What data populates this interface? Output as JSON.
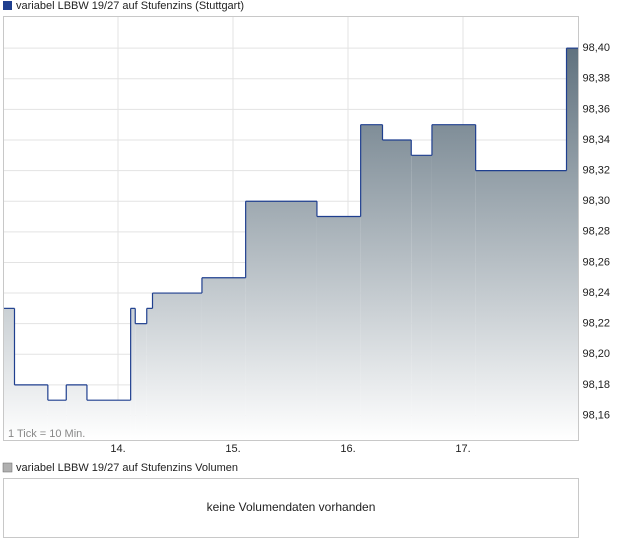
{
  "chart_data": {
    "type": "step-area",
    "title": "variabel LBBW 19/27 auf Stufenzins (Stuttgart)",
    "note": "1 Tick = 10 Min.",
    "x": [
      13.0,
      13.1,
      13.39,
      13.55,
      13.73,
      14.11,
      14.15,
      14.25,
      14.3,
      14.73,
      15.11,
      15.73,
      16.11,
      16.3,
      16.55,
      16.73,
      17.11,
      17.9
    ],
    "values": [
      98.23,
      98.18,
      98.17,
      98.18,
      98.17,
      98.23,
      98.22,
      98.23,
      98.24,
      98.25,
      98.3,
      98.29,
      98.35,
      98.34,
      98.33,
      98.35,
      98.32,
      98.4
    ],
    "color": "#1f3f8f",
    "area_top_color": "#5d6f7c",
    "xlim": [
      13,
      18
    ],
    "ylim": [
      98.144,
      98.421
    ],
    "xticks": [
      {
        "value": 14,
        "label": "14."
      },
      {
        "value": 15,
        "label": "15."
      },
      {
        "value": 16,
        "label": "16."
      },
      {
        "value": 17,
        "label": "17."
      }
    ],
    "yticks": [
      {
        "value": 98.16,
        "label": "98,16"
      },
      {
        "value": 98.18,
        "label": "98,18"
      },
      {
        "value": 98.2,
        "label": "98,20"
      },
      {
        "value": 98.22,
        "label": "98,22"
      },
      {
        "value": 98.24,
        "label": "98,24"
      },
      {
        "value": 98.26,
        "label": "98,26"
      },
      {
        "value": 98.28,
        "label": "98,28"
      },
      {
        "value": 98.3,
        "label": "98,30"
      },
      {
        "value": 98.32,
        "label": "98,32"
      },
      {
        "value": 98.34,
        "label": "98,34"
      },
      {
        "value": 98.36,
        "label": "98,36"
      },
      {
        "value": 98.38,
        "label": "98,38"
      },
      {
        "value": 98.4,
        "label": "98,40"
      }
    ],
    "grid": true
  },
  "volume": {
    "legend": "variabel LBBW 19/27 auf Stufenzins Volumen",
    "message": "keine Volumendaten vorhanden"
  }
}
